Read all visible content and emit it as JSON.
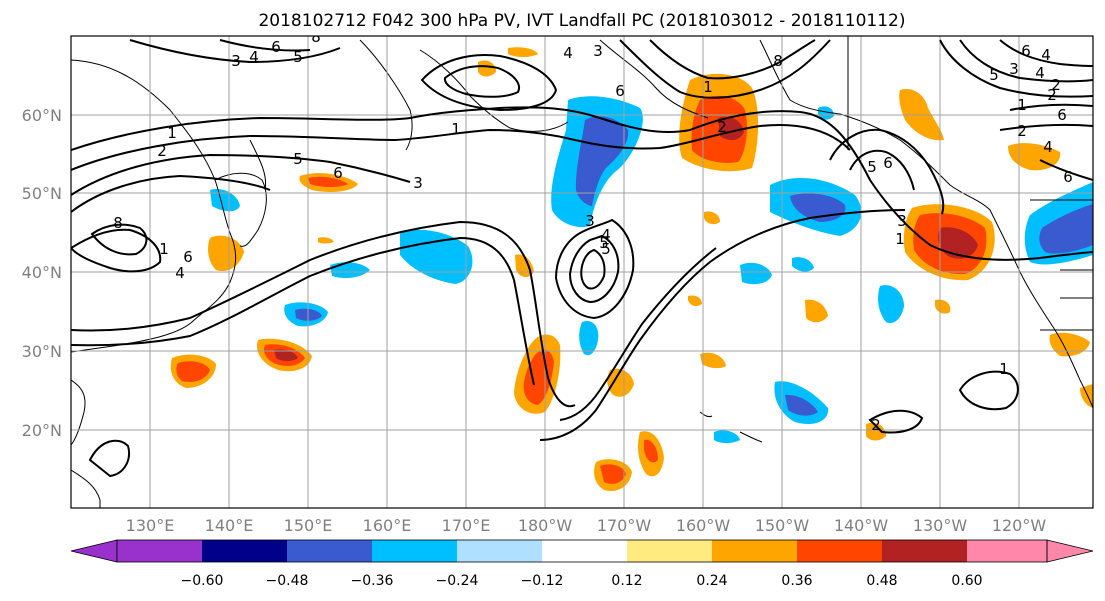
{
  "title": "2018102712 F042 300 hPa PV, IVT Landfall PC (2018103012 - 2018110112)",
  "map": {
    "lat_labels": [
      "60°N",
      "50°N",
      "40°N",
      "30°N",
      "20°N"
    ],
    "lon_labels": [
      "130°E",
      "140°E",
      "150°E",
      "160°E",
      "170°E",
      "180°W",
      "170°W",
      "160°W",
      "150°W",
      "140°W",
      "130°W",
      "120°W"
    ],
    "land_outline_color": "#000000",
    "grid_color": "#a0a0a0",
    "contour_color": "#000000",
    "contour_labels": [
      "1",
      "2",
      "3",
      "4",
      "5",
      "6",
      "8",
      "1",
      "2",
      "3",
      "4",
      "5",
      "6",
      "1",
      "2",
      "4",
      "5",
      "6",
      "3",
      "4",
      "5",
      "3",
      "1",
      "6",
      "5",
      "6",
      "1",
      "2",
      "3",
      "4",
      "6",
      "8",
      "1",
      "2",
      "4",
      "6",
      "1",
      "2",
      "3",
      "4",
      "5",
      "6",
      "8"
    ]
  },
  "colorbar": {
    "labels": [
      "−0.60",
      "−0.48",
      "−0.36",
      "−0.24",
      "−0.12",
      "0.12",
      "0.24",
      "0.36",
      "0.48",
      "0.60"
    ],
    "colors": [
      "#9932cc",
      "#00008b",
      "#3a5bd0",
      "#00bfff",
      "#b0e0ff",
      "#ffffff",
      "#ffeb80",
      "#ffa500",
      "#ff4500",
      "#b22222",
      "#ff88aa"
    ]
  }
}
